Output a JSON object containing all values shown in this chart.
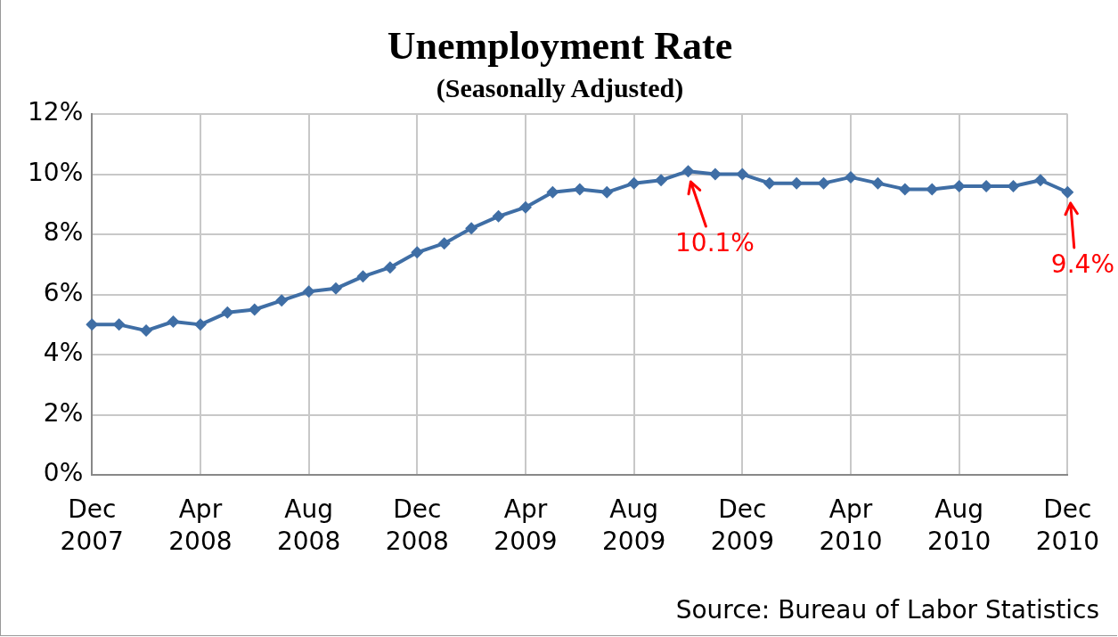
{
  "chart_data": {
    "type": "line",
    "title": "Unemployment Rate",
    "subtitle": "(Seasonally Adjusted)",
    "categories": [
      "Dec 2007",
      null,
      null,
      null,
      "Apr 2008",
      null,
      null,
      null,
      "Aug 2008",
      null,
      null,
      null,
      "Dec 2008",
      null,
      null,
      null,
      "Apr 2009",
      null,
      null,
      null,
      "Aug 2009",
      null,
      null,
      null,
      "Dec 2009",
      null,
      null,
      null,
      "Apr 2010",
      null,
      null,
      null,
      "Aug 2010",
      null,
      null,
      null,
      "Dec 2010"
    ],
    "series": [
      {
        "color": "#3f6ea5",
        "values": [
          5.0,
          5.0,
          4.8,
          5.1,
          5.0,
          5.4,
          5.5,
          5.8,
          6.1,
          6.2,
          6.6,
          6.9,
          7.4,
          7.7,
          8.2,
          8.6,
          8.9,
          9.4,
          9.5,
          9.4,
          9.7,
          9.8,
          10.1,
          10.0,
          10.0,
          9.7,
          9.7,
          9.7,
          9.9,
          9.7,
          9.5,
          9.5,
          9.6,
          9.6,
          9.6,
          9.8,
          9.4
        ]
      }
    ],
    "ylim": [
      0,
      12
    ],
    "yticks": [
      {
        "value": 0,
        "label": "0%"
      },
      {
        "value": 2,
        "label": "2%"
      },
      {
        "value": 4,
        "label": "4%"
      },
      {
        "value": 6,
        "label": "6%"
      },
      {
        "value": 8,
        "label": "8%"
      },
      {
        "value": 10,
        "label": "10%"
      },
      {
        "value": 12,
        "label": "12%"
      }
    ],
    "grid": true,
    "marker": "diamond",
    "line_style": "solid",
    "legend": false,
    "annotations": [
      {
        "text": "10.1%",
        "y": 10.1
      },
      {
        "text": "9.4%",
        "x": "Dec 2010",
        "y": 9.4
      },
      "Source: Bureau of Labor Statistics"
    ]
  }
}
